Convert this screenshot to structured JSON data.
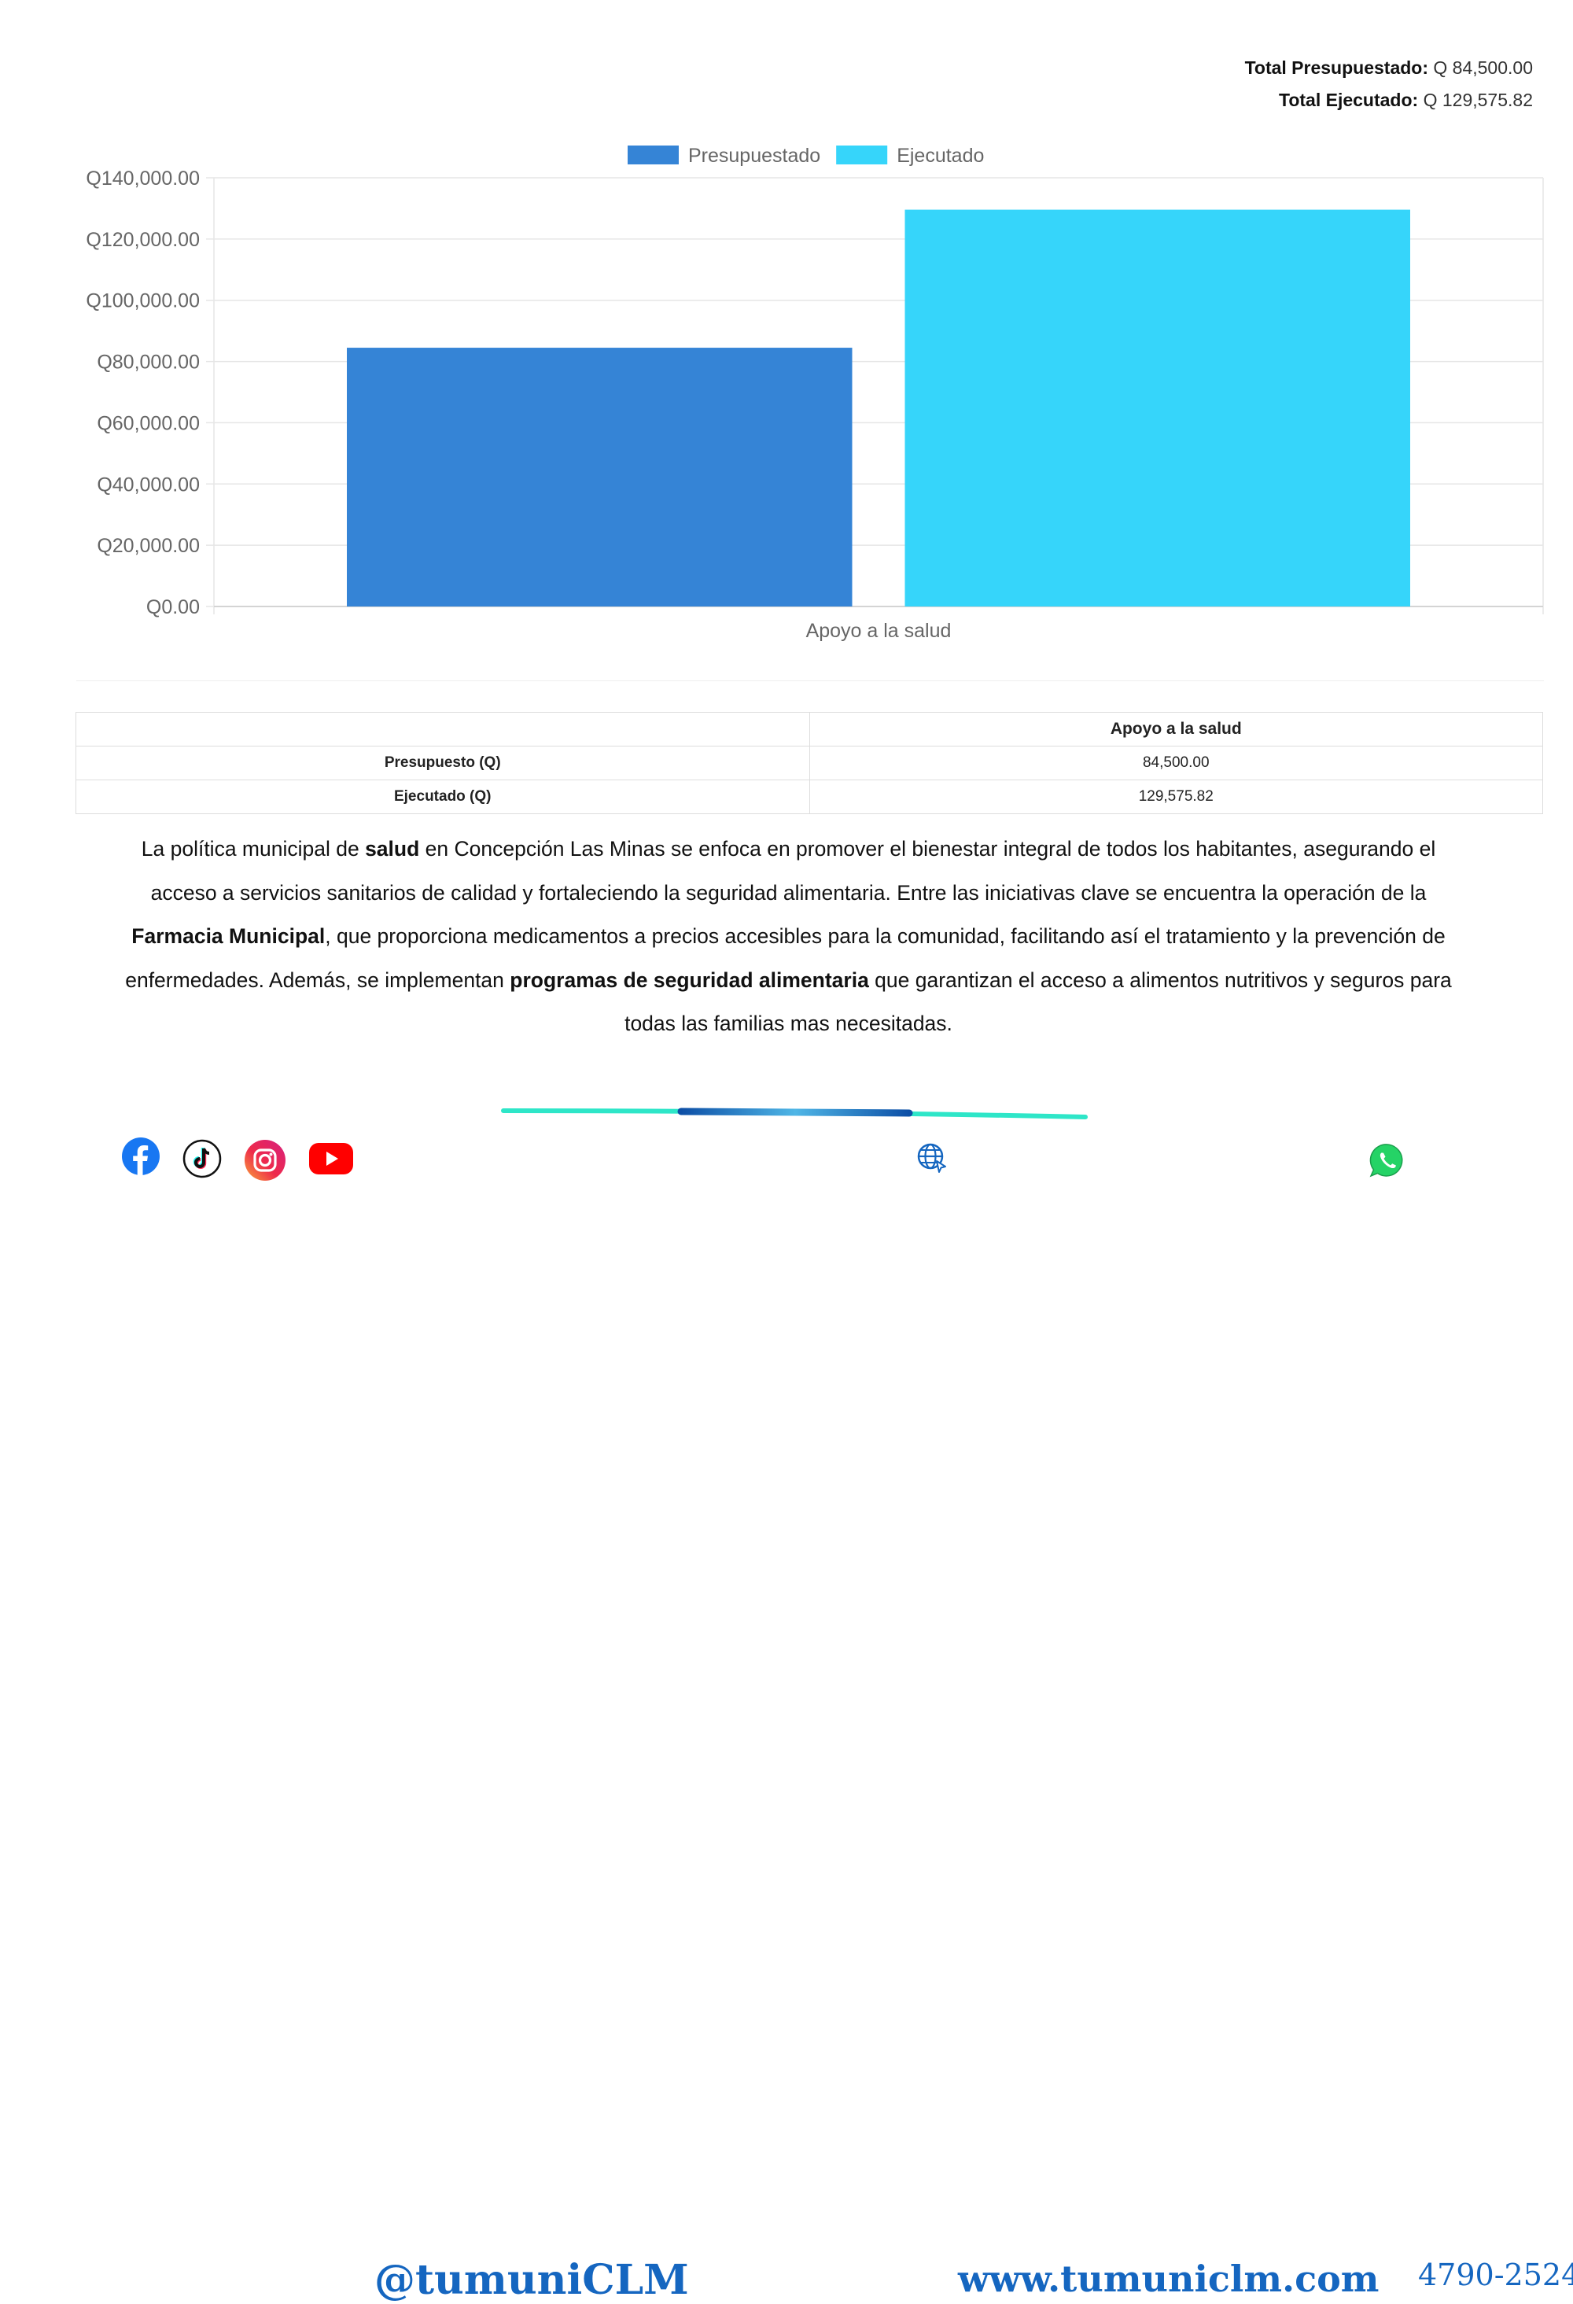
{
  "totals": {
    "budget_label": "Total Presupuestado:",
    "budget_value": "Q 84,500.00",
    "executed_label": "Total Ejecutado:",
    "executed_value": "Q 129,575.82"
  },
  "chart_data": {
    "type": "bar",
    "categories": [
      "Apoyo a la salud"
    ],
    "series": [
      {
        "name": "Presupuestado",
        "values": [
          84500.0
        ],
        "color": "#3584d6"
      },
      {
        "name": "Ejecutado",
        "values": [
          129575.82
        ],
        "color": "#36d5fa"
      }
    ],
    "ylim": [
      0,
      140000
    ],
    "yticks": [
      0,
      20000,
      40000,
      60000,
      80000,
      100000,
      120000,
      140000
    ],
    "ytick_labels": [
      "Q0.00",
      "Q20,000.00",
      "Q40,000.00",
      "Q60,000.00",
      "Q80,000.00",
      "Q100,000.00",
      "Q120,000.00",
      "Q140,000.00"
    ],
    "legend_position": "top-center",
    "grid": true
  },
  "table": {
    "header": [
      "",
      "Apoyo a la salud"
    ],
    "rows": [
      {
        "label": "Presupuesto (Q)",
        "value": "84,500.00"
      },
      {
        "label": "Ejecutado (Q)",
        "value": "129,575.82"
      }
    ]
  },
  "description": {
    "t1": "La política municipal de ",
    "b1": "salud",
    "t2": " en Concepción Las Minas se enfoca en promover el bienestar integral de todos los habitantes, asegurando el acceso a servicios sanitarios de calidad y fortaleciendo la seguridad alimentaria. Entre las iniciativas clave se encuentra la operación de la ",
    "b2": "Farmacia Municipal",
    "t3": ", que proporciona medicamentos a precios accesibles para la comunidad, facilitando así el tratamiento y la prevención de enfermedades. Además, se implementan ",
    "b3": "programas de seguridad alimentaria",
    "t4": " que garantizan el acceso a alimentos nutritivos y seguros para todas las familias mas necesitadas."
  },
  "footer": {
    "social_icons": [
      "facebook-icon",
      "tiktok-icon",
      "instagram-icon",
      "youtube-icon"
    ],
    "handle": "@tumuniCLM",
    "website_icon": "globe-icon",
    "website": "www.tumuniclm.com",
    "phone_icon": "whatsapp-icon",
    "phone": "4790-2524",
    "colors": {
      "brand": "#1566c0",
      "accent_line": "#2ee6c8"
    }
  }
}
